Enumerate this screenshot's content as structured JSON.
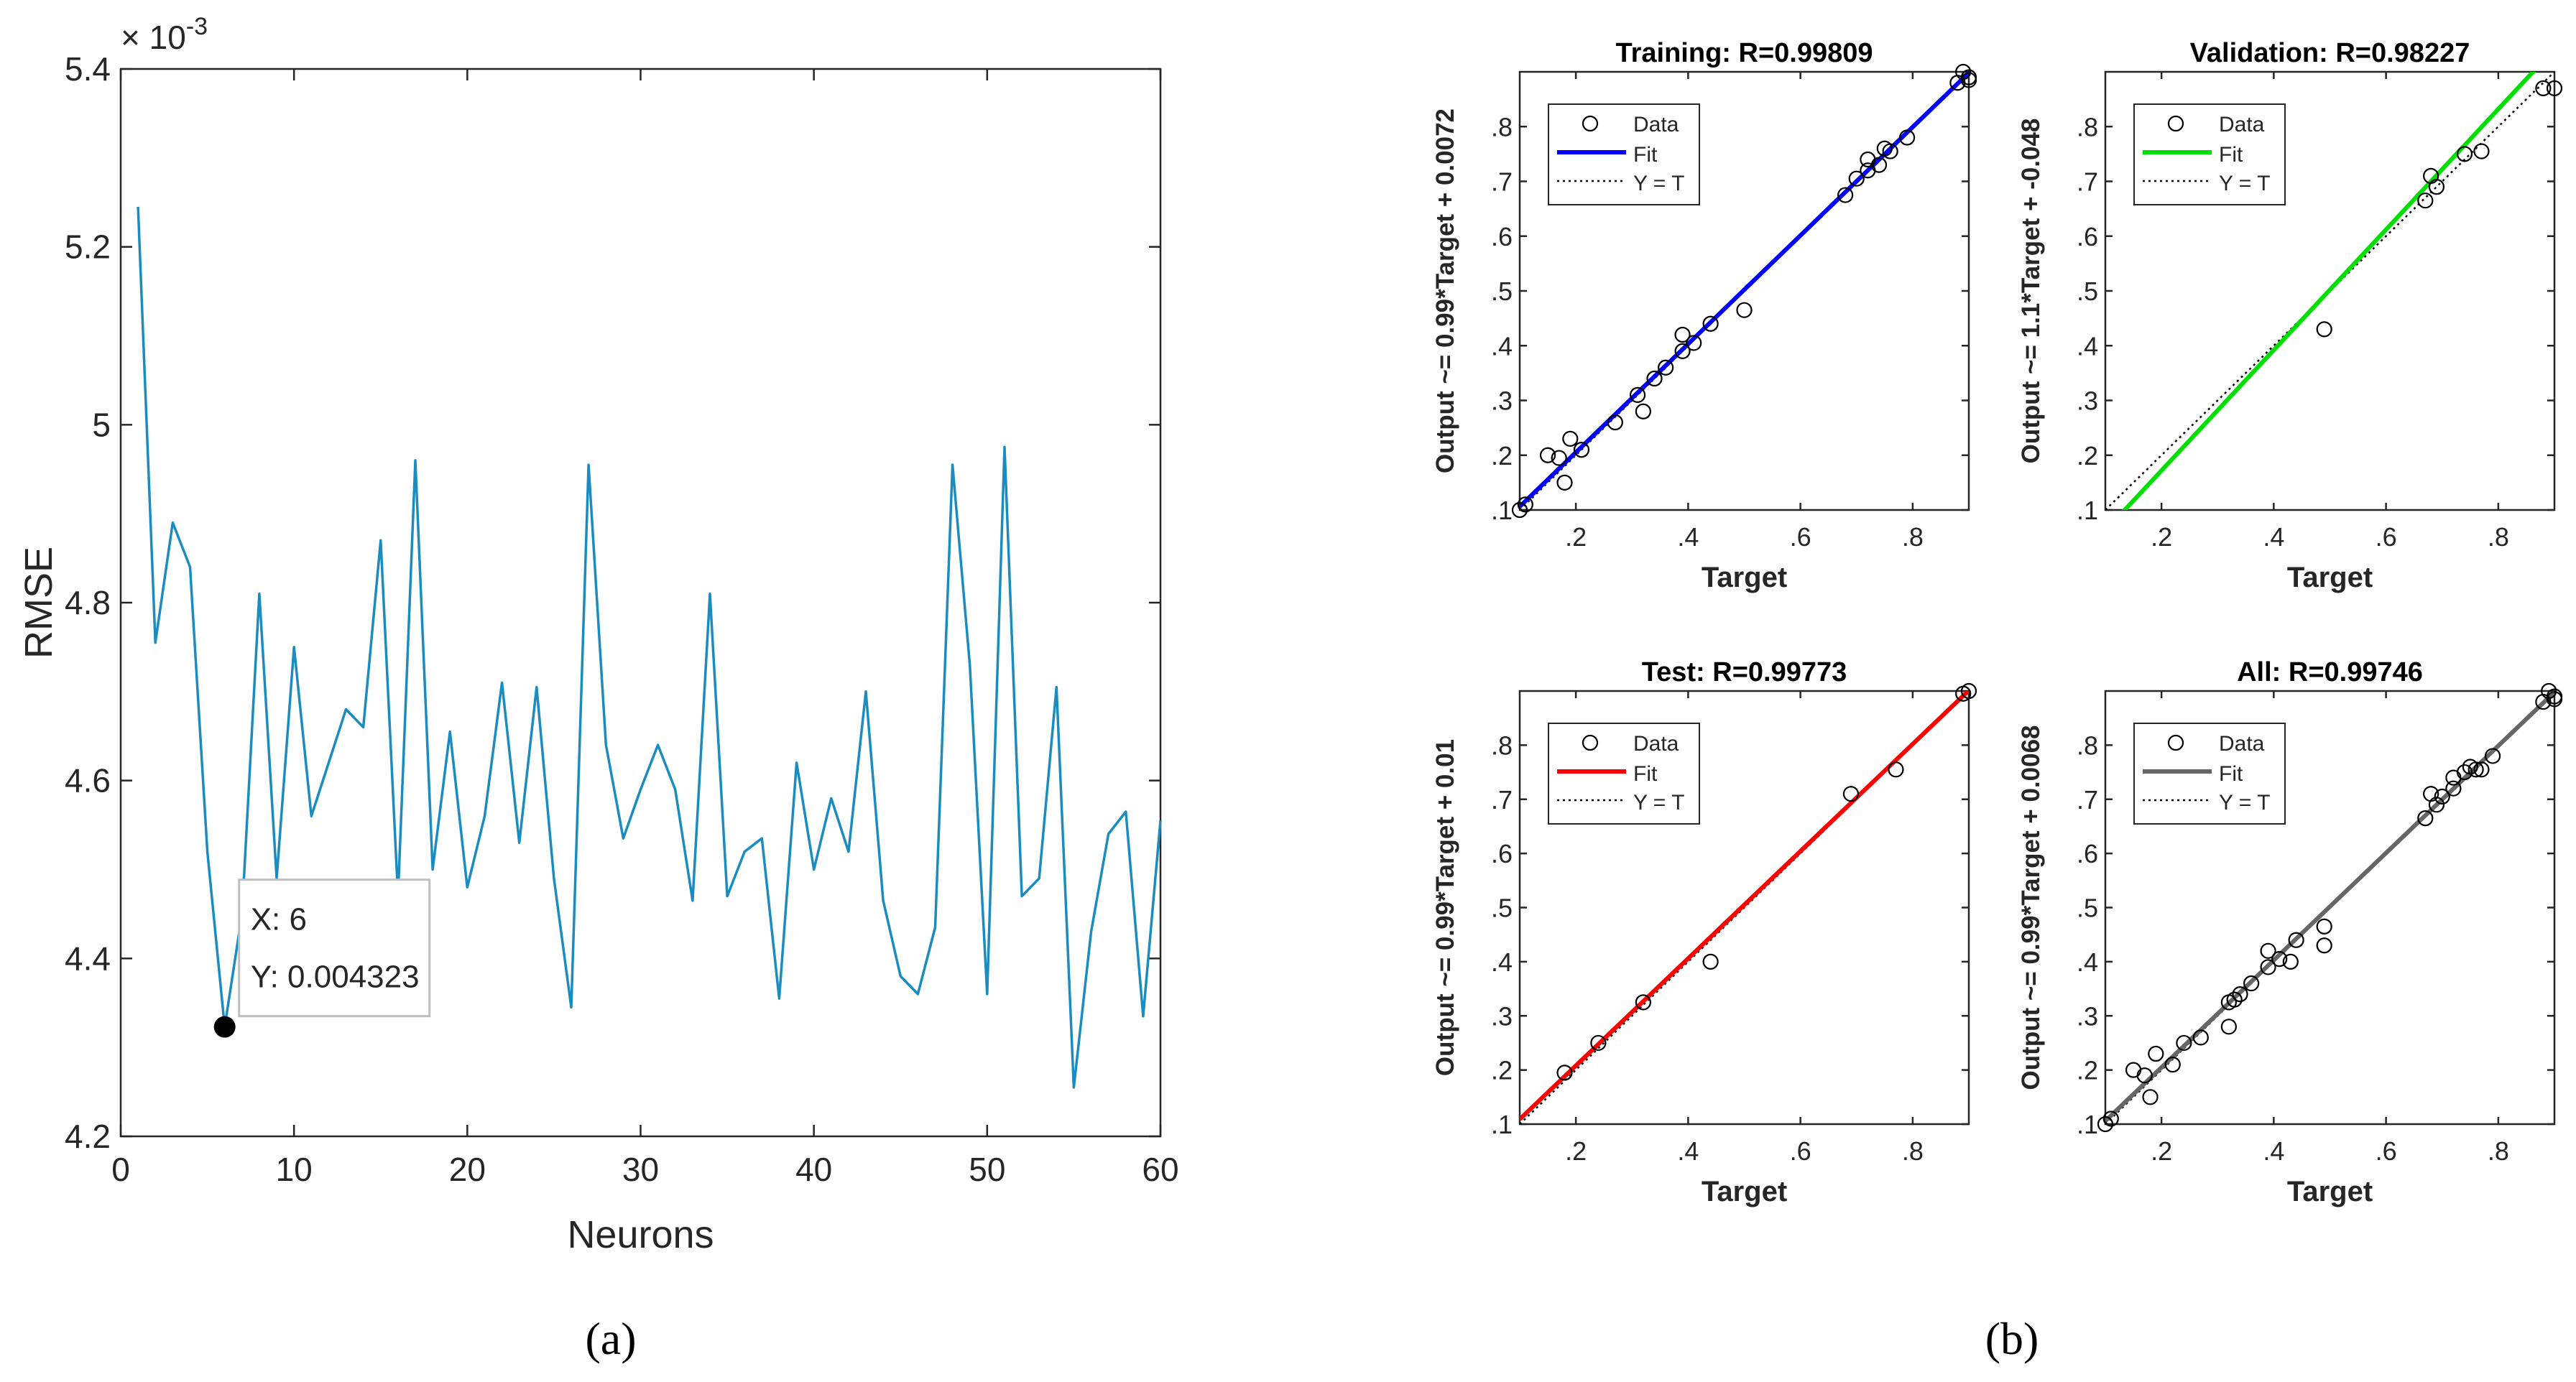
{
  "panel_labels": {
    "a": "(a)",
    "b": "(b)"
  },
  "colors": {
    "rmse_line": "#1a8cbf",
    "training_fit": "#0000ff",
    "validation_fit": "#00e000",
    "test_fit": "#ff0000",
    "all_fit": "#666666"
  },
  "chart_data": [
    {
      "id": "rmse",
      "type": "line",
      "title": "",
      "xlabel": "Neurons",
      "ylabel": "RMSE",
      "exponent_label": "× 10",
      "exponent_power": "-3",
      "xlim": [
        0,
        60
      ],
      "ylim": [
        4.2,
        5.4
      ],
      "xticks": [
        0,
        10,
        20,
        30,
        40,
        50,
        60
      ],
      "yticks": [
        4.2,
        4.4,
        4.6,
        4.8,
        5,
        5.2,
        5.4
      ],
      "x": [
        1,
        2,
        3,
        4,
        5,
        6,
        7,
        8,
        9,
        10,
        11,
        12,
        13,
        14,
        15,
        16,
        17,
        18,
        19,
        20,
        21,
        22,
        23,
        24,
        25,
        26,
        27,
        28,
        29,
        30,
        31,
        32,
        33,
        34,
        35,
        36,
        37,
        38,
        39,
        40,
        41,
        42,
        43,
        44,
        45,
        46,
        47,
        48,
        49,
        50,
        51,
        52,
        53,
        54,
        55,
        56,
        57,
        58,
        59,
        60
      ],
      "values": [
        5.245,
        4.755,
        4.89,
        4.84,
        4.52,
        4.323,
        4.45,
        4.81,
        4.49,
        4.75,
        4.56,
        4.62,
        4.68,
        4.66,
        4.87,
        4.47,
        4.96,
        4.5,
        4.655,
        4.48,
        4.56,
        4.71,
        4.53,
        4.705,
        4.49,
        4.345,
        4.955,
        4.64,
        4.535,
        4.59,
        4.64,
        4.59,
        4.465,
        4.81,
        4.47,
        4.52,
        4.535,
        4.355,
        4.62,
        4.5,
        4.58,
        4.52,
        4.7,
        4.465,
        4.38,
        4.36,
        4.435,
        4.955,
        4.73,
        4.36,
        4.975,
        4.47,
        4.49,
        4.705,
        4.255,
        4.43,
        4.54,
        4.565,
        4.335,
        4.555
      ],
      "datatip": {
        "x": 6,
        "y": 0.004323,
        "x_text": "X: 6",
        "y_text": "Y: 0.004323"
      }
    },
    {
      "id": "training",
      "type": "scatter",
      "title": "Training: R=0.99809",
      "xlabel": "Target",
      "ylabel": "Output ~= 0.99*Target + 0.0072",
      "xlim": [
        0.1,
        0.9
      ],
      "ylim": [
        0.1,
        0.9
      ],
      "xticks": [
        0.2,
        0.4,
        0.6,
        0.8
      ],
      "yticks": [
        0.1,
        0.2,
        0.3,
        0.4,
        0.5,
        0.6,
        0.7,
        0.8
      ],
      "fit": {
        "slope": 0.99,
        "intercept": 0.0072
      },
      "legend": [
        "Data",
        "Fit",
        "Y = T"
      ],
      "points": [
        [
          0.1,
          0.1
        ],
        [
          0.11,
          0.11
        ],
        [
          0.15,
          0.2
        ],
        [
          0.17,
          0.195
        ],
        [
          0.18,
          0.15
        ],
        [
          0.19,
          0.23
        ],
        [
          0.21,
          0.21
        ],
        [
          0.27,
          0.26
        ],
        [
          0.31,
          0.31
        ],
        [
          0.32,
          0.28
        ],
        [
          0.34,
          0.34
        ],
        [
          0.36,
          0.36
        ],
        [
          0.39,
          0.39
        ],
        [
          0.39,
          0.42
        ],
        [
          0.41,
          0.405
        ],
        [
          0.44,
          0.44
        ],
        [
          0.5,
          0.465
        ],
        [
          0.68,
          0.675
        ],
        [
          0.7,
          0.705
        ],
        [
          0.72,
          0.72
        ],
        [
          0.72,
          0.74
        ],
        [
          0.74,
          0.73
        ],
        [
          0.75,
          0.76
        ],
        [
          0.76,
          0.755
        ],
        [
          0.79,
          0.78
        ],
        [
          0.88,
          0.88
        ],
        [
          0.89,
          0.9
        ],
        [
          0.9,
          0.885
        ],
        [
          0.9,
          0.89
        ]
      ]
    },
    {
      "id": "validation",
      "type": "scatter",
      "title": "Validation: R=0.98227",
      "xlabel": "Target",
      "ylabel": "Output ~= 1.1*Target + -0.048",
      "xlim": [
        0.1,
        0.9
      ],
      "ylim": [
        0.1,
        0.9
      ],
      "xticks": [
        0.2,
        0.4,
        0.6,
        0.8
      ],
      "yticks": [
        0.1,
        0.2,
        0.3,
        0.4,
        0.5,
        0.6,
        0.7,
        0.8
      ],
      "fit": {
        "slope": 1.1,
        "intercept": -0.048
      },
      "legend": [
        "Data",
        "Fit",
        "Y = T"
      ],
      "points": [
        [
          0.49,
          0.43
        ],
        [
          0.67,
          0.665
        ],
        [
          0.68,
          0.71
        ],
        [
          0.69,
          0.69
        ],
        [
          0.74,
          0.75
        ],
        [
          0.77,
          0.755
        ],
        [
          0.88,
          0.87
        ],
        [
          0.9,
          0.87
        ]
      ]
    },
    {
      "id": "test",
      "type": "scatter",
      "title": "Test: R=0.99773",
      "xlabel": "Target",
      "ylabel": "Output ~= 0.99*Target + 0.01",
      "xlim": [
        0.1,
        0.9
      ],
      "ylim": [
        0.1,
        0.9
      ],
      "xticks": [
        0.2,
        0.4,
        0.6,
        0.8
      ],
      "yticks": [
        0.1,
        0.2,
        0.3,
        0.4,
        0.5,
        0.6,
        0.7,
        0.8
      ],
      "fit": {
        "slope": 0.99,
        "intercept": 0.01
      },
      "legend": [
        "Data",
        "Fit",
        "Y = T"
      ],
      "points": [
        [
          0.18,
          0.195
        ],
        [
          0.24,
          0.25
        ],
        [
          0.32,
          0.325
        ],
        [
          0.44,
          0.4
        ],
        [
          0.69,
          0.71
        ],
        [
          0.77,
          0.755
        ],
        [
          0.89,
          0.895
        ],
        [
          0.9,
          0.9
        ]
      ]
    },
    {
      "id": "all",
      "type": "scatter",
      "title": "All: R=0.99746",
      "xlabel": "Target",
      "ylabel": "Output ~= 0.99*Target + 0.0068",
      "xlim": [
        0.1,
        0.9
      ],
      "ylim": [
        0.1,
        0.9
      ],
      "xticks": [
        0.2,
        0.4,
        0.6,
        0.8
      ],
      "yticks": [
        0.1,
        0.2,
        0.3,
        0.4,
        0.5,
        0.6,
        0.7,
        0.8
      ],
      "fit": {
        "slope": 0.99,
        "intercept": 0.0068
      },
      "legend": [
        "Data",
        "Fit",
        "Y = T"
      ],
      "points": [
        [
          0.1,
          0.1
        ],
        [
          0.11,
          0.11
        ],
        [
          0.15,
          0.2
        ],
        [
          0.17,
          0.19
        ],
        [
          0.18,
          0.15
        ],
        [
          0.19,
          0.23
        ],
        [
          0.22,
          0.21
        ],
        [
          0.24,
          0.25
        ],
        [
          0.27,
          0.26
        ],
        [
          0.32,
          0.28
        ],
        [
          0.32,
          0.325
        ],
        [
          0.33,
          0.33
        ],
        [
          0.34,
          0.34
        ],
        [
          0.36,
          0.36
        ],
        [
          0.39,
          0.39
        ],
        [
          0.39,
          0.42
        ],
        [
          0.41,
          0.405
        ],
        [
          0.43,
          0.4
        ],
        [
          0.44,
          0.44
        ],
        [
          0.49,
          0.43
        ],
        [
          0.49,
          0.465
        ],
        [
          0.67,
          0.665
        ],
        [
          0.68,
          0.71
        ],
        [
          0.69,
          0.69
        ],
        [
          0.7,
          0.705
        ],
        [
          0.72,
          0.72
        ],
        [
          0.72,
          0.74
        ],
        [
          0.74,
          0.75
        ],
        [
          0.75,
          0.76
        ],
        [
          0.76,
          0.755
        ],
        [
          0.77,
          0.755
        ],
        [
          0.79,
          0.78
        ],
        [
          0.88,
          0.88
        ],
        [
          0.89,
          0.9
        ],
        [
          0.9,
          0.885
        ],
        [
          0.9,
          0.89
        ]
      ]
    }
  ]
}
